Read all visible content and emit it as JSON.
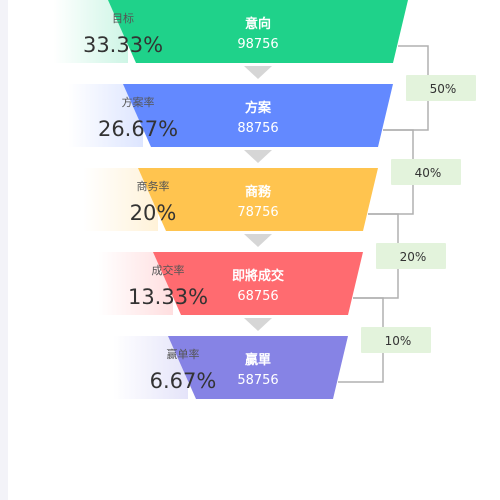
{
  "chart_data": {
    "type": "funnel",
    "stages": [
      {
        "name": "意向",
        "value": 98756,
        "rate_label": "目标",
        "rate": "33.33%",
        "color": "#1fd28a"
      },
      {
        "name": "方案",
        "value": 88756,
        "rate_label": "方案率",
        "rate": "26.67%",
        "color": "#6389ff"
      },
      {
        "name": "商務",
        "value": 78756,
        "rate_label": "商务率",
        "rate": "20%",
        "color": "#ffc44f"
      },
      {
        "name": "即將成交",
        "value": 68756,
        "rate_label": "成交率",
        "rate": "13.33%",
        "color": "#ff6b70"
      },
      {
        "name": "贏單",
        "value": 58756,
        "rate_label": "赢单率",
        "rate": "6.67%",
        "color": "#8683e5"
      }
    ],
    "conversions": [
      "50%",
      "40%",
      "20%",
      "10%"
    ],
    "colors": {
      "arrow": "#d6d6d6",
      "bracket": "#b0b0b0",
      "conversion_box": "#e3f3dc"
    }
  }
}
